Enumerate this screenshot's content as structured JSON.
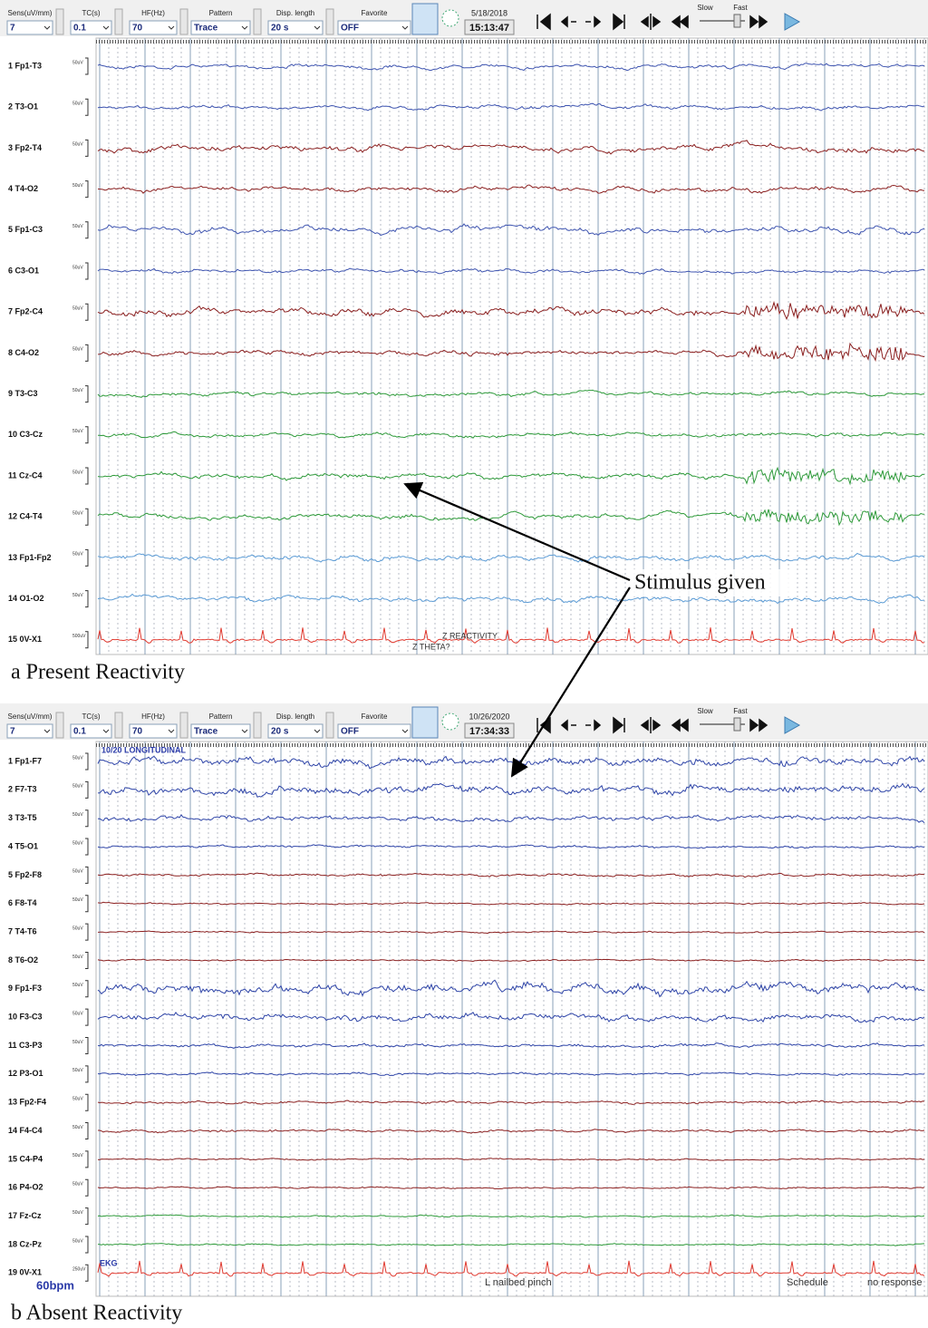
{
  "panels": [
    {
      "toolbar": {
        "fields": [
          {
            "label": "Sens(uV/mm)",
            "value": "7"
          },
          {
            "label": "TC(s)",
            "value": "0.1"
          },
          {
            "label": "HF(Hz)",
            "value": "70"
          },
          {
            "label": "Pattern",
            "value": "Trace"
          },
          {
            "label": "Disp. length",
            "value": "20 s"
          },
          {
            "label": "Favorite",
            "value": "OFF"
          }
        ],
        "date": "5/18/2018",
        "time": "15:13:47",
        "slow": "Slow",
        "fast": "Fast"
      },
      "channels": [
        {
          "label": "1 Fp1-T3",
          "scale": "50uV",
          "color": "#3f55b0"
        },
        {
          "label": "2 T3-O1",
          "scale": "50uV",
          "color": "#3f55b0"
        },
        {
          "label": "3 Fp2-T4",
          "scale": "50uV",
          "color": "#8b2020"
        },
        {
          "label": "4 T4-O2",
          "scale": "50uV",
          "color": "#8b2020"
        },
        {
          "label": "5 Fp1-C3",
          "scale": "50uV",
          "color": "#3f55b0"
        },
        {
          "label": "6 C3-O1",
          "scale": "50uV",
          "color": "#3f55b0"
        },
        {
          "label": "7 Fp2-C4",
          "scale": "50uV",
          "color": "#8b2020"
        },
        {
          "label": "8 C4-O2",
          "scale": "50uV",
          "color": "#8b2020"
        },
        {
          "label": "9 T3-C3",
          "scale": "50uV",
          "color": "#2e9a3a"
        },
        {
          "label": "10 C3-Cz",
          "scale": "50uV",
          "color": "#2e9a3a"
        },
        {
          "label": "11 Cz-C4",
          "scale": "50uV",
          "color": "#2e9a3a"
        },
        {
          "label": "12 C4-T4",
          "scale": "50uV",
          "color": "#2e9a3a"
        },
        {
          "label": "13 Fp1-Fp2",
          "scale": "50uV",
          "color": "#5b9bd5"
        },
        {
          "label": "14 O1-O2",
          "scale": "50uV",
          "color": "#5b9bd5"
        },
        {
          "label": "15 0V-X1",
          "scale": "500uV",
          "color": "#e03a30"
        }
      ],
      "annotations": [
        "Z REACTIVITY",
        "Z THETA?"
      ],
      "caption": "a  Present Reactivity"
    },
    {
      "toolbar": {
        "fields": [
          {
            "label": "Sens(uV/mm)",
            "value": "7"
          },
          {
            "label": "TC(s)",
            "value": "0.1"
          },
          {
            "label": "HF(Hz)",
            "value": "70"
          },
          {
            "label": "Pattern",
            "value": "Trace"
          },
          {
            "label": "Disp. length",
            "value": "20 s"
          },
          {
            "label": "Favorite",
            "value": "OFF"
          }
        ],
        "date": "10/26/2020",
        "time": "17:34:33",
        "slow": "Slow",
        "fast": "Fast"
      },
      "channels": [
        {
          "label": "1 Fp1-F7",
          "scale": "50uV",
          "color": "#2f45a8"
        },
        {
          "label": "2 F7-T3",
          "scale": "50uV",
          "color": "#2f45a8"
        },
        {
          "label": "3 T3-T5",
          "scale": "50uV",
          "color": "#2f45a8"
        },
        {
          "label": "4 T5-O1",
          "scale": "50uV",
          "color": "#2f45a8"
        },
        {
          "label": "5 Fp2-F8",
          "scale": "50uV",
          "color": "#8b2020"
        },
        {
          "label": "6 F8-T4",
          "scale": "50uV",
          "color": "#8b2020"
        },
        {
          "label": "7 T4-T6",
          "scale": "50uV",
          "color": "#8b2020"
        },
        {
          "label": "8 T6-O2",
          "scale": "50uV",
          "color": "#8b2020"
        },
        {
          "label": "9 Fp1-F3",
          "scale": "50uV",
          "color": "#2f45a8"
        },
        {
          "label": "10 F3-C3",
          "scale": "50uV",
          "color": "#2f45a8"
        },
        {
          "label": "11 C3-P3",
          "scale": "50uV",
          "color": "#2f45a8"
        },
        {
          "label": "12 P3-O1",
          "scale": "50uV",
          "color": "#2f45a8"
        },
        {
          "label": "13 Fp2-F4",
          "scale": "50uV",
          "color": "#8b2020"
        },
        {
          "label": "14 F4-C4",
          "scale": "50uV",
          "color": "#8b2020"
        },
        {
          "label": "15 C4-P4",
          "scale": "50uV",
          "color": "#8b2020"
        },
        {
          "label": "16 P4-O2",
          "scale": "50uV",
          "color": "#8b2020"
        },
        {
          "label": "17 Fz-Cz",
          "scale": "50uV",
          "color": "#2e9a3a"
        },
        {
          "label": "18 Cz-Pz",
          "scale": "50uV",
          "color": "#2e9a3a"
        },
        {
          "label": "19 0V-X1",
          "scale": "250uV",
          "color": "#e03a30"
        }
      ],
      "annotations": [
        "10/20 LONGITUDINAL",
        "EKG",
        "60bpm",
        "L nailbed pinch",
        "Schedule",
        "no response"
      ],
      "caption": "b  Absent Reactivity"
    }
  ],
  "stimulus_label": "Stimulus given"
}
